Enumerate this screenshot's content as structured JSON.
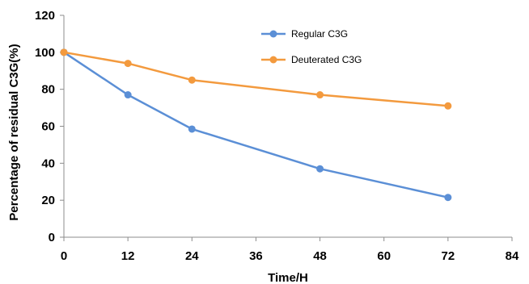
{
  "chart_data": {
    "type": "line",
    "title": "",
    "xlabel": "Time/H",
    "ylabel": "Percentage of residual C3G(%)",
    "xlim": [
      0,
      84
    ],
    "ylim": [
      0,
      120
    ],
    "xticks": [
      0,
      12,
      24,
      36,
      48,
      60,
      72,
      84
    ],
    "yticks": [
      0,
      20,
      40,
      60,
      80,
      100,
      120
    ],
    "grid": false,
    "legend": "top-right",
    "series": [
      {
        "name": "Regular C3G",
        "color": "#5b8fd6",
        "x": [
          0,
          12,
          24,
          48,
          72
        ],
        "y": [
          100,
          77,
          58.5,
          37,
          21.5
        ]
      },
      {
        "name": "Deuterated C3G",
        "color": "#f39a3e",
        "x": [
          0,
          12,
          24,
          48,
          72
        ],
        "y": [
          100,
          94,
          85,
          77,
          71
        ]
      }
    ]
  }
}
